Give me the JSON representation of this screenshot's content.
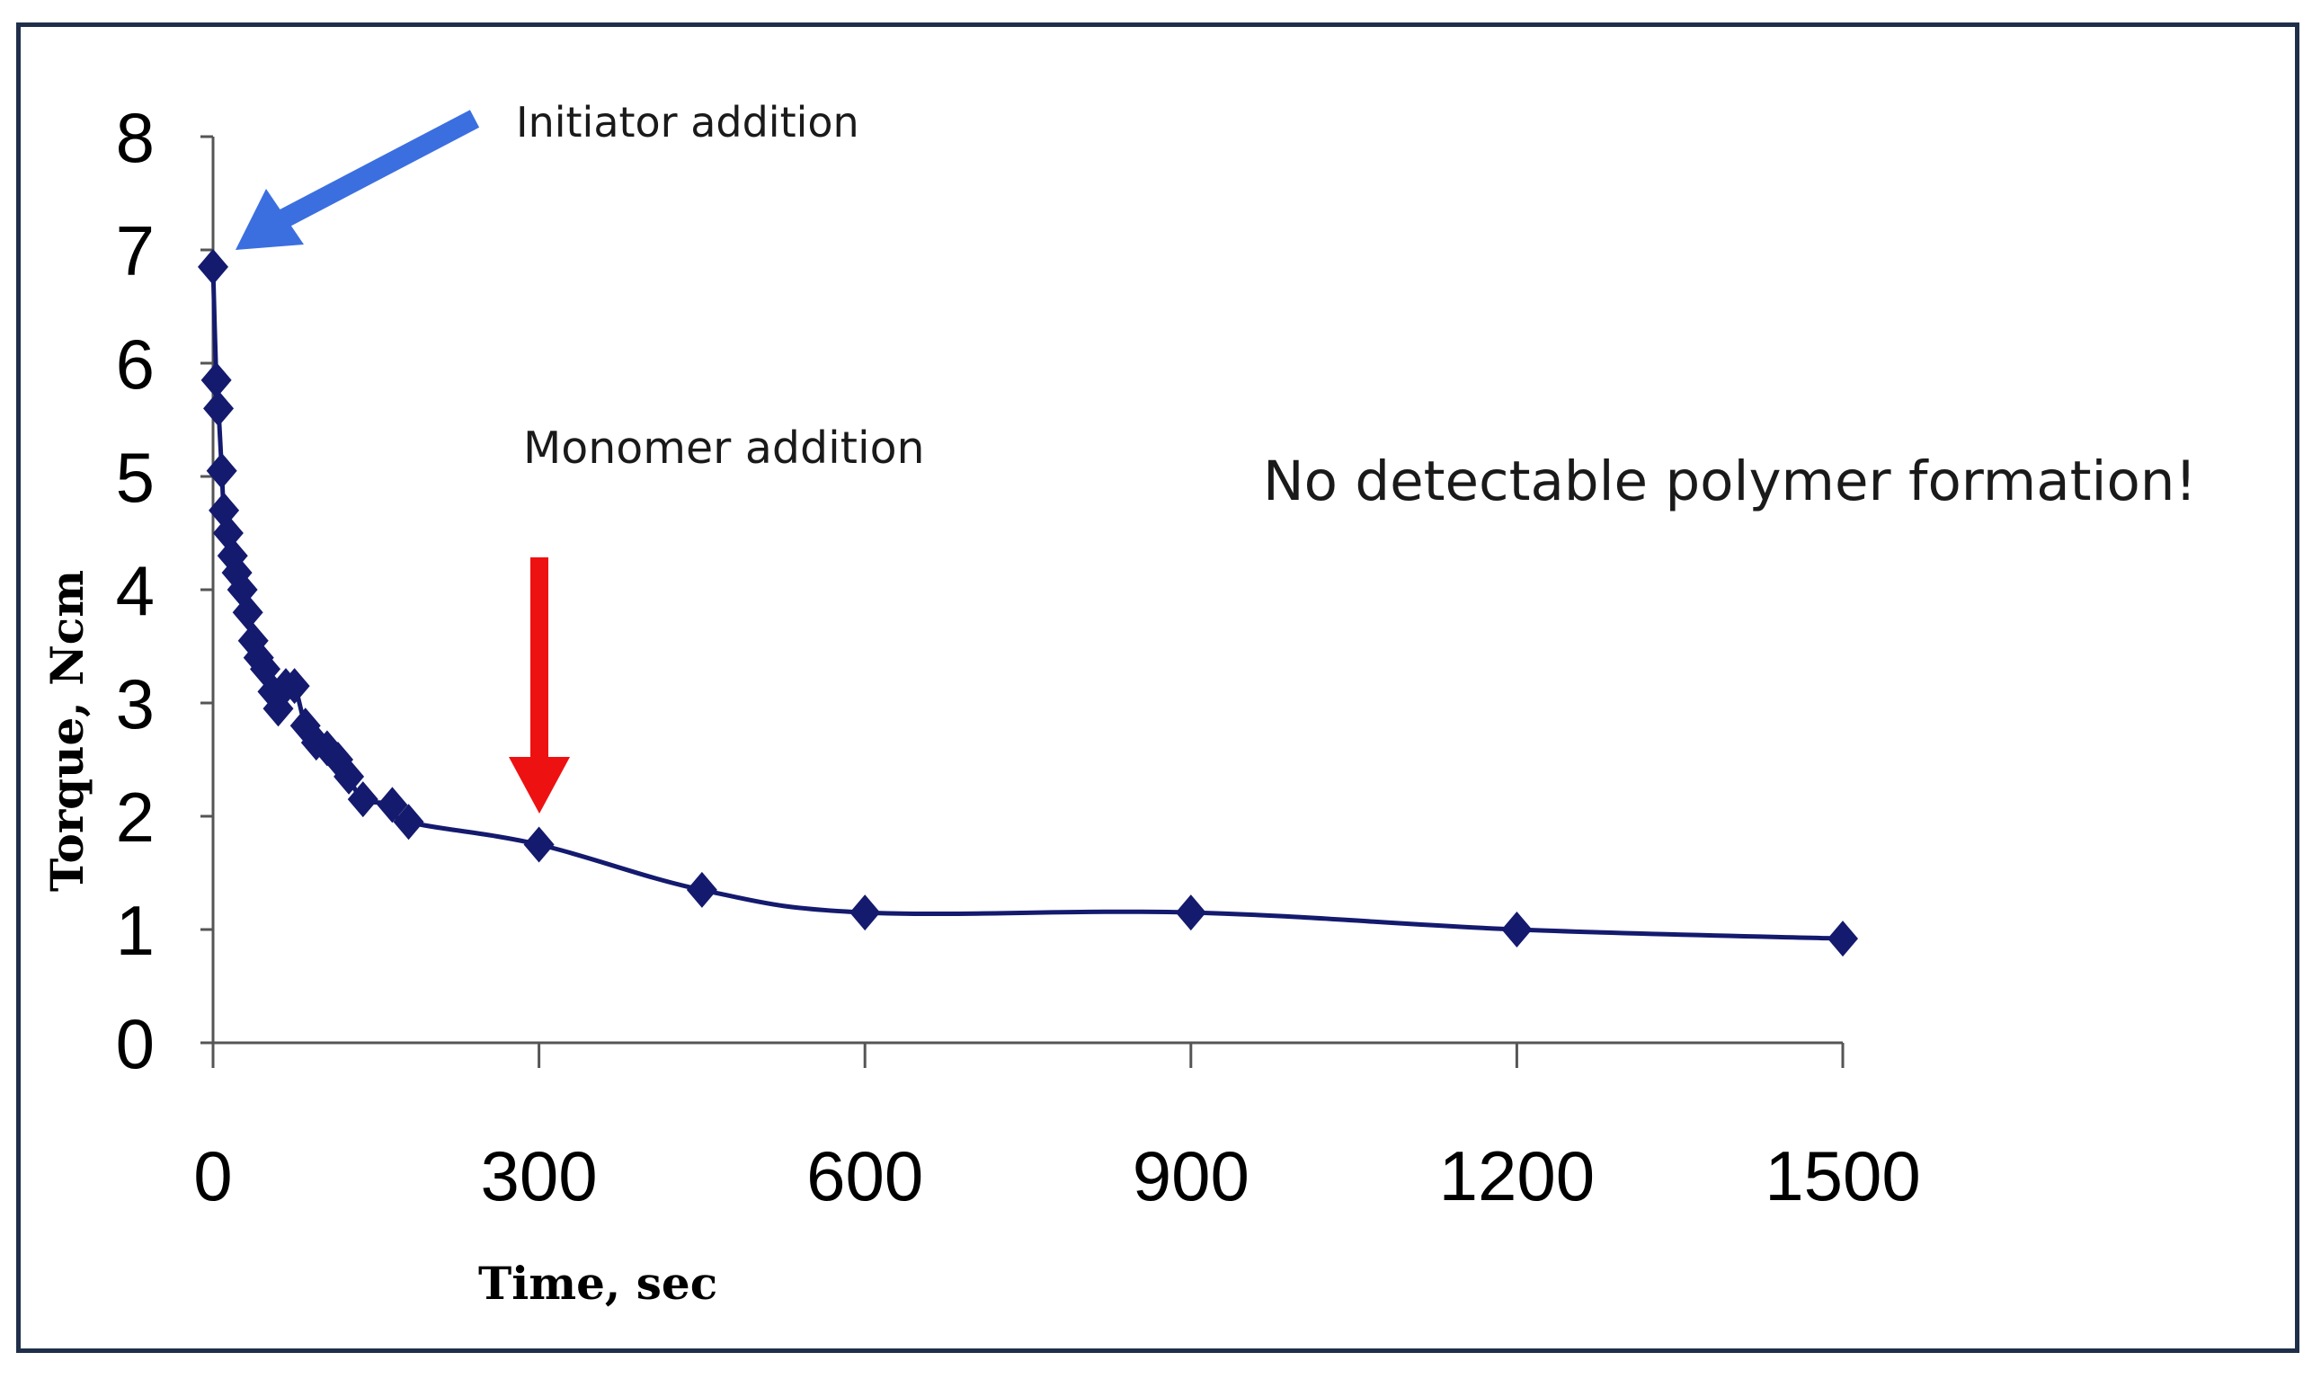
{
  "chart_data": {
    "type": "line",
    "title": "",
    "xlabel": "Time, sec",
    "ylabel": "Torque, Ncm",
    "xlim": [
      0,
      1500
    ],
    "ylim": [
      0,
      8
    ],
    "xticks": [
      0,
      300,
      600,
      900,
      1200,
      1500
    ],
    "yticks": [
      0,
      1,
      2,
      3,
      4,
      5,
      6,
      7,
      8
    ],
    "xtick_labels": [
      "0",
      "300",
      "600",
      "900",
      "1200",
      "1500"
    ],
    "ytick_labels": [
      "0",
      "1",
      "2",
      "3",
      "4",
      "5",
      "6",
      "7",
      "8"
    ],
    "grid": false,
    "legend": null,
    "series": [
      {
        "name": "Torque",
        "color": "#141a6e",
        "marker": "diamond",
        "x": [
          0,
          3,
          5,
          8,
          10,
          14,
          18,
          22,
          27,
          32,
          37,
          42,
          48,
          55,
          60,
          67,
          75,
          85,
          95,
          105,
          115,
          125,
          138,
          165,
          180,
          300,
          450,
          600,
          900,
          1200,
          1500
        ],
        "y": [
          6.85,
          5.85,
          5.6,
          5.05,
          4.7,
          4.5,
          4.3,
          4.15,
          4.0,
          3.8,
          3.55,
          3.4,
          3.3,
          3.1,
          2.95,
          3.15,
          3.15,
          2.8,
          2.65,
          2.6,
          2.5,
          2.35,
          2.15,
          2.1,
          1.95,
          1.75,
          1.35,
          1.15,
          1.15,
          1.0,
          0.92
        ]
      }
    ],
    "annotations": [
      {
        "text": "Initiator addition",
        "color": "#3b6fe0",
        "arrow": "blue",
        "target_x": 0,
        "target_y": 6.85
      },
      {
        "text": "Monomer addition",
        "color": "#ee1111",
        "arrow": "red",
        "target_x": 300,
        "target_y": 1.75
      },
      {
        "text": "No detectable polymer formation!"
      }
    ]
  }
}
